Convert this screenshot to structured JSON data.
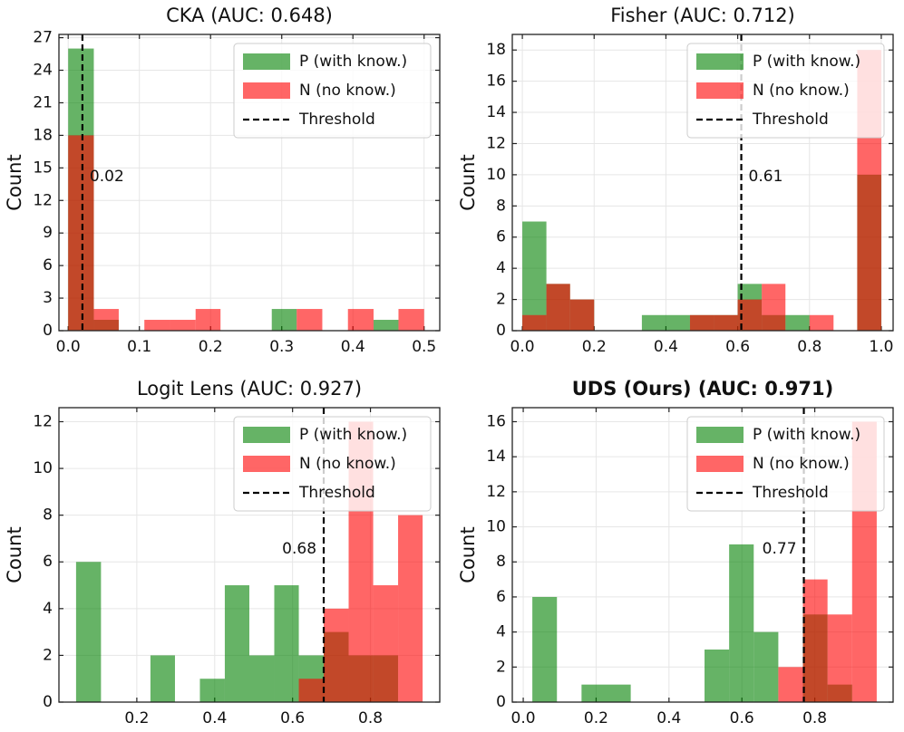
{
  "chart_data": [
    {
      "type": "histogram",
      "title": "CKA (AUC: 0.648)",
      "ylabel": "Count",
      "xlim": [
        -0.013,
        0.522
      ],
      "ylim": [
        0,
        27.3
      ],
      "xticks": [
        {
          "value": 0,
          "label": "0.0"
        },
        0.1,
        0.2,
        0.3,
        0.4,
        0.5
      ],
      "yticks": [
        0,
        3,
        6,
        9,
        12,
        15,
        18,
        21,
        24,
        27
      ],
      "grid": true,
      "legend": "upper right",
      "alpha": 0.6,
      "series": [
        {
          "name": "P (with know.)",
          "color": "green",
          "bins": [
            0,
            0.036,
            0.071,
            0.107,
            0.143,
            0.179,
            0.214,
            0.25,
            0.286,
            0.321,
            0.357,
            0.393,
            0.429,
            0.464,
            0.5
          ],
          "values": [
            26,
            1,
            0,
            0,
            0,
            0,
            0,
            0,
            2,
            0,
            0,
            0,
            1,
            0
          ]
        },
        {
          "name": "N (no know.)",
          "color": "red",
          "bins": [
            0,
            0.036,
            0.071,
            0.107,
            0.143,
            0.179,
            0.214,
            0.25,
            0.286,
            0.321,
            0.357,
            0.393,
            0.429,
            0.464,
            0.5
          ],
          "values": [
            18,
            2,
            0,
            1,
            1,
            2,
            0,
            0,
            0,
            2,
            0,
            2,
            0,
            2
          ]
        }
      ],
      "threshold": 0.02,
      "threshold_name": "Threshold"
    },
    {
      "type": "histogram",
      "title": "Fisher (AUC: 0.712)",
      "ylabel": "Count",
      "xlim": [
        -0.028,
        1.033
      ],
      "ylim": [
        0,
        19
      ],
      "xticks": [
        {
          "value": 0,
          "label": "0.0"
        },
        0.2,
        0.4,
        0.6,
        0.8,
        {
          "value": 1,
          "label": "1.0"
        }
      ],
      "yticks": [
        0,
        2,
        4,
        6,
        8,
        10,
        12,
        14,
        16,
        18
      ],
      "grid": true,
      "legend": "upper right",
      "alpha": 0.6,
      "series": [
        {
          "name": "P (with know.)",
          "color": "green",
          "bins": [
            0,
            0.067,
            0.133,
            0.2,
            0.267,
            0.333,
            0.4,
            0.467,
            0.533,
            0.6,
            0.667,
            0.733,
            0.8,
            0.867,
            0.933,
            1
          ],
          "values": [
            7,
            3,
            2,
            0,
            0,
            1,
            1,
            1,
            1,
            3,
            1,
            1,
            0,
            0,
            10
          ]
        },
        {
          "name": "N (no know.)",
          "color": "red",
          "bins": [
            0,
            0.067,
            0.133,
            0.2,
            0.267,
            0.333,
            0.4,
            0.467,
            0.533,
            0.6,
            0.667,
            0.733,
            0.8,
            0.867,
            0.933,
            1
          ],
          "values": [
            1,
            3,
            2,
            0,
            0,
            0,
            0,
            1,
            1,
            2,
            3,
            0,
            1,
            0,
            18
          ]
        }
      ],
      "threshold": 0.61,
      "threshold_name": "Threshold"
    },
    {
      "type": "histogram",
      "title": "Logit Lens (AUC: 0.927)",
      "ylabel": "Count",
      "xlim": [
        0,
        0.978
      ],
      "ylim": [
        0,
        12.6
      ],
      "xticks": [
        0.2,
        0.4,
        0.6,
        0.8
      ],
      "yticks": [
        0,
        2,
        4,
        6,
        8,
        10,
        12
      ],
      "grid": true,
      "legend": "upper right",
      "alpha": 0.6,
      "series": [
        {
          "name": "P (with know.)",
          "color": "green",
          "bins": [
            0.044,
            0.108,
            0.171,
            0.235,
            0.298,
            0.362,
            0.426,
            0.489,
            0.553,
            0.616,
            0.68,
            0.744,
            0.807,
            0.871
          ],
          "values": [
            6,
            0,
            0,
            2,
            0,
            1,
            5,
            2,
            5,
            2,
            3,
            2,
            2
          ]
        },
        {
          "name": "N (no know.)",
          "color": "red",
          "bins": [
            0.616,
            0.68,
            0.744,
            0.807,
            0.871,
            0.934
          ],
          "values": [
            1,
            4,
            12,
            5,
            8
          ]
        }
      ],
      "threshold": 0.68,
      "threshold_name": "Threshold"
    },
    {
      "type": "histogram",
      "title": "UDS (Ours) (AUC: 0.971)",
      "bold_title": true,
      "ylabel": "Count",
      "xlim": [
        -0.03,
        1.015
      ],
      "ylim": [
        0,
        16.8
      ],
      "xticks": [
        {
          "value": 0,
          "label": "0.0"
        },
        0.2,
        0.4,
        0.6,
        0.8
      ],
      "yticks": [
        0,
        2,
        4,
        6,
        8,
        10,
        12,
        14,
        16
      ],
      "grid": true,
      "legend": "upper right",
      "alpha": 0.6,
      "series": [
        {
          "name": "P (with know.)",
          "color": "green",
          "bins": [
            0.025,
            0.0925,
            0.16,
            0.2275,
            0.295,
            0.3625,
            0.43,
            0.4975,
            0.565,
            0.6325,
            0.7,
            0.7675,
            0.835,
            0.9025
          ],
          "values": [
            6,
            0,
            1,
            1,
            0,
            0,
            0,
            3,
            9,
            4,
            0,
            5,
            1
          ]
        },
        {
          "name": "N (no know.)",
          "color": "red",
          "bins": [
            0.7,
            0.7675,
            0.835,
            0.9025,
            0.97
          ],
          "values": [
            2,
            7,
            5,
            16
          ]
        }
      ],
      "threshold": 0.77,
      "threshold_name": "Threshold"
    }
  ]
}
